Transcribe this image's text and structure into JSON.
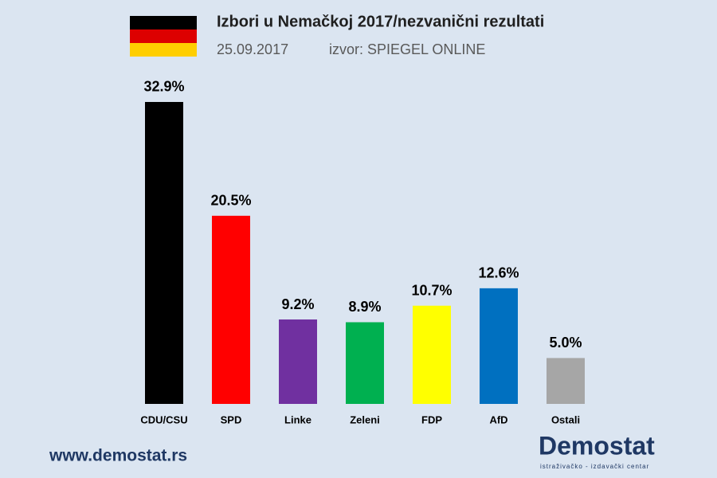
{
  "chart_data": {
    "type": "bar",
    "title": "Izbori u Nemačkoj 2017/nezvanični rezultati",
    "date": "25.09.2017",
    "source": "izvor: SPIEGEL ONLINE",
    "categories": [
      "CDU/CSU",
      "SPD",
      "Linke",
      "Zeleni",
      "FDP",
      "AfD",
      "Ostali"
    ],
    "values": [
      32.9,
      20.5,
      9.2,
      8.9,
      10.7,
      12.6,
      5.0
    ],
    "value_labels": [
      "32.9%",
      "20.5%",
      "9.2%",
      "8.9%",
      "10.7%",
      "12.6%",
      "5.0%"
    ],
    "colors": [
      "#000000",
      "#ff0000",
      "#7030a0",
      "#00b050",
      "#ffff00",
      "#0070c0",
      "#a6a6a6"
    ],
    "grid": false
  },
  "footer": {
    "url": "www.demostat.rs",
    "logo": "Demostat",
    "tagline": "istraživačko - izdavački centar"
  }
}
